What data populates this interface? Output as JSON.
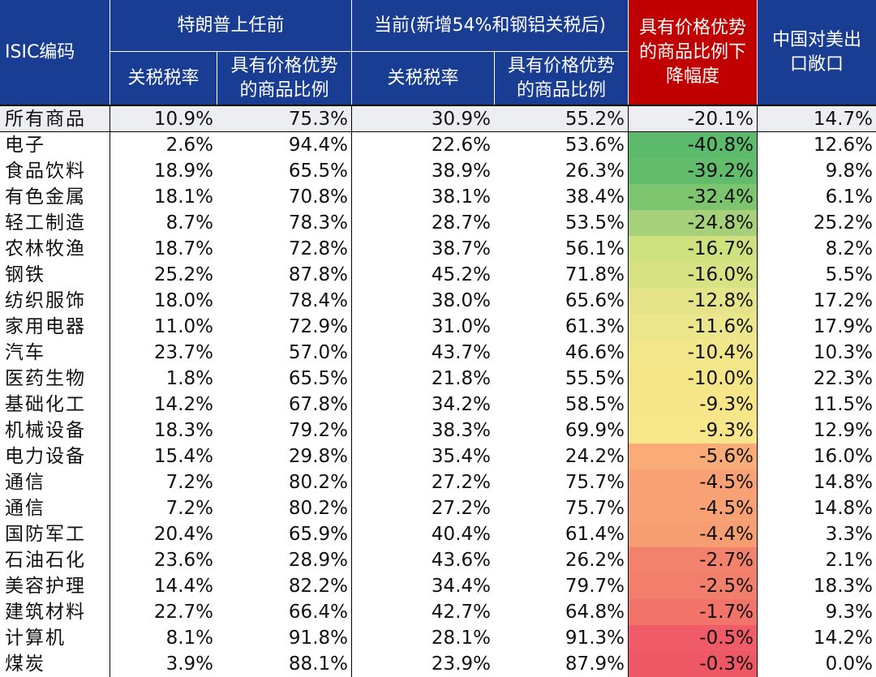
{
  "headers": {
    "isic": "ISIC编码",
    "group_before": "特朗普上任前",
    "group_current": "当前(新增54%和钢铝关税后)",
    "tariff_rate": "关税税率",
    "price_adv_l1": "具有价格优势",
    "price_adv_l2": "的商品比例",
    "decline_l1": "具有价格优势",
    "decline_l2": "的商品比例下",
    "decline_l3": "降幅度",
    "exposure_l1": "中国对美出",
    "exposure_l2": "口敞口"
  },
  "chart_data": {
    "type": "table",
    "columns": [
      "ISIC编码",
      "特朗普上任前 关税税率",
      "特朗普上任前 具有价格优势的商品比例",
      "当前 关税税率",
      "当前 具有价格优势的商品比例",
      "具有价格优势的商品比例下降幅度",
      "中国对美出口敞口"
    ],
    "rows": [
      [
        "所有商品",
        "10.9%",
        "75.3%",
        "30.9%",
        "55.2%",
        "-20.1%",
        "14.7%"
      ],
      [
        "电子",
        "2.6%",
        "94.4%",
        "22.6%",
        "53.6%",
        "-40.8%",
        "12.6%"
      ],
      [
        "食品饮料",
        "18.9%",
        "65.5%",
        "38.9%",
        "26.3%",
        "-39.2%",
        "9.8%"
      ],
      [
        "有色金属",
        "18.1%",
        "70.8%",
        "38.1%",
        "38.4%",
        "-32.4%",
        "6.1%"
      ],
      [
        "轻工制造",
        "8.7%",
        "78.3%",
        "28.7%",
        "53.5%",
        "-24.8%",
        "25.2%"
      ],
      [
        "农林牧渔",
        "18.7%",
        "72.8%",
        "38.7%",
        "56.1%",
        "-16.7%",
        "8.2%"
      ],
      [
        "钢铁",
        "25.2%",
        "87.8%",
        "45.2%",
        "71.8%",
        "-16.0%",
        "5.5%"
      ],
      [
        "纺织服饰",
        "18.0%",
        "78.4%",
        "38.0%",
        "65.6%",
        "-12.8%",
        "17.2%"
      ],
      [
        "家用电器",
        "11.0%",
        "72.9%",
        "31.0%",
        "61.3%",
        "-11.6%",
        "17.9%"
      ],
      [
        "汽车",
        "23.7%",
        "57.0%",
        "43.7%",
        "46.6%",
        "-10.4%",
        "10.3%"
      ],
      [
        "医药生物",
        "1.8%",
        "65.5%",
        "21.8%",
        "55.5%",
        "-10.0%",
        "22.3%"
      ],
      [
        "基础化工",
        "14.2%",
        "67.8%",
        "34.2%",
        "58.5%",
        "-9.3%",
        "11.5%"
      ],
      [
        "机械设备",
        "18.3%",
        "79.2%",
        "38.3%",
        "69.9%",
        "-9.3%",
        "12.9%"
      ],
      [
        "电力设备",
        "15.4%",
        "29.8%",
        "35.4%",
        "24.2%",
        "-5.6%",
        "16.0%"
      ],
      [
        "通信",
        "7.2%",
        "80.2%",
        "27.2%",
        "75.7%",
        "-4.5%",
        "14.8%"
      ],
      [
        "通信",
        "7.2%",
        "80.2%",
        "27.2%",
        "75.7%",
        "-4.5%",
        "14.8%"
      ],
      [
        "国防军工",
        "20.4%",
        "65.9%",
        "40.4%",
        "61.4%",
        "-4.4%",
        "3.3%"
      ],
      [
        "石油石化",
        "23.6%",
        "28.9%",
        "43.6%",
        "26.2%",
        "-2.7%",
        "2.1%"
      ],
      [
        "美容护理",
        "14.4%",
        "82.2%",
        "34.4%",
        "79.7%",
        "-2.5%",
        "18.3%"
      ],
      [
        "建筑材料",
        "22.7%",
        "66.4%",
        "42.7%",
        "64.8%",
        "-1.7%",
        "9.3%"
      ],
      [
        "计算机",
        "8.1%",
        "91.8%",
        "28.1%",
        "91.3%",
        "-0.5%",
        "14.2%"
      ],
      [
        "煤炭",
        "3.9%",
        "88.1%",
        "23.9%",
        "87.9%",
        "-0.3%",
        "0.0%"
      ]
    ],
    "heat_colors": [
      "#5cba6d",
      "#62bc6c",
      "#7dc46f",
      "#a6d07a",
      "#cfe07e",
      "#d7e283",
      "#e6e48a",
      "#ebe58b",
      "#f2e68a",
      "#f4e688",
      "#f7e688",
      "#f8e68a",
      "#f9ab78",
      "#f7a174",
      "#f7a174",
      "#f69e72",
      "#f3826d",
      "#f27f6c",
      "#f1736a",
      "#ef5b66",
      "#ee5764"
    ]
  }
}
